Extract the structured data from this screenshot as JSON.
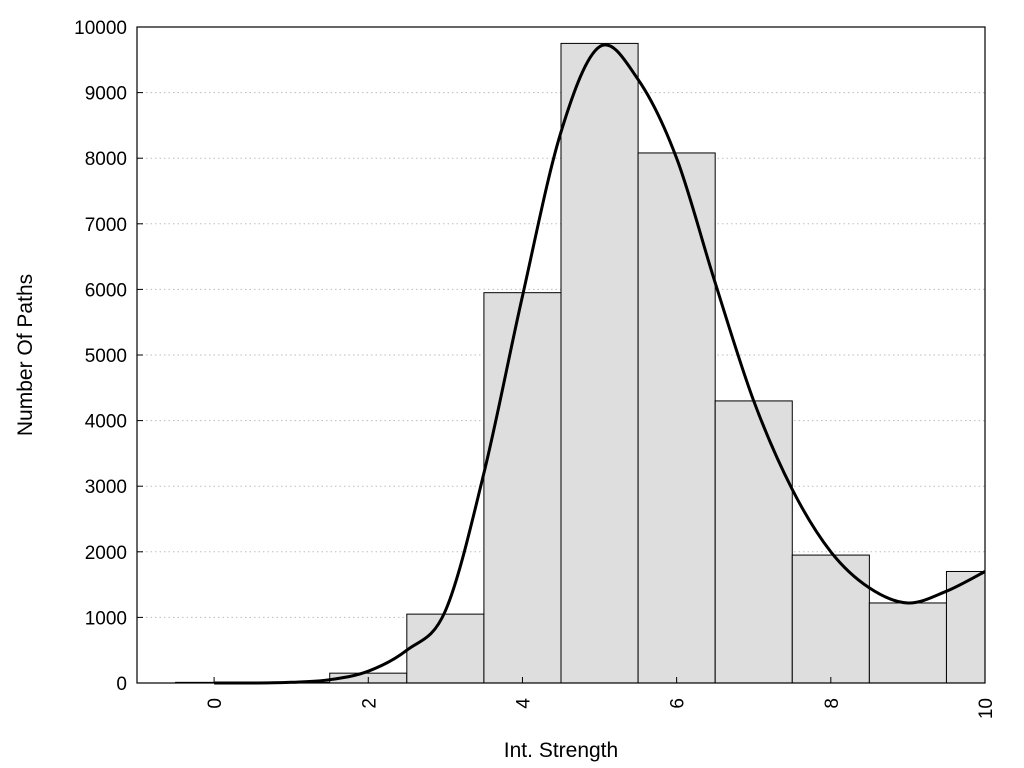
{
  "chart_data": {
    "type": "bar",
    "title": "",
    "xlabel": "Int. Strength",
    "ylabel": "Number Of Paths",
    "xlim": [
      -1,
      10
    ],
    "ylim": [
      0,
      10000
    ],
    "x_ticks": [
      "0",
      "2",
      "4",
      "6",
      "8",
      "10"
    ],
    "y_ticks": [
      "0",
      "1000",
      "2000",
      "3000",
      "4000",
      "5000",
      "6000",
      "7000",
      "8000",
      "9000",
      "10000"
    ],
    "grid": "horizontal-dotted",
    "legend": "none",
    "bar_color": "#dedede",
    "edge_color": "#000000",
    "bin_width": 1,
    "bars": {
      "x": [
        0,
        1,
        2,
        3,
        4,
        5,
        6,
        7,
        8,
        9,
        10
      ],
      "values": [
        10,
        10,
        150,
        1050,
        5950,
        9750,
        8080,
        4300,
        1950,
        1220,
        1700
      ]
    },
    "curve": {
      "x": [
        0,
        0.5,
        1,
        1.5,
        2,
        2.5,
        3,
        3.5,
        4,
        4.5,
        5,
        5.5,
        6,
        6.5,
        7,
        7.5,
        8,
        8.5,
        9,
        9.5,
        10
      ],
      "values": [
        0,
        0,
        10,
        50,
        180,
        500,
        1100,
        3200,
        5900,
        8400,
        9700,
        9200,
        8000,
        6100,
        4300,
        2950,
        2000,
        1450,
        1220,
        1400,
        1700
      ]
    }
  }
}
